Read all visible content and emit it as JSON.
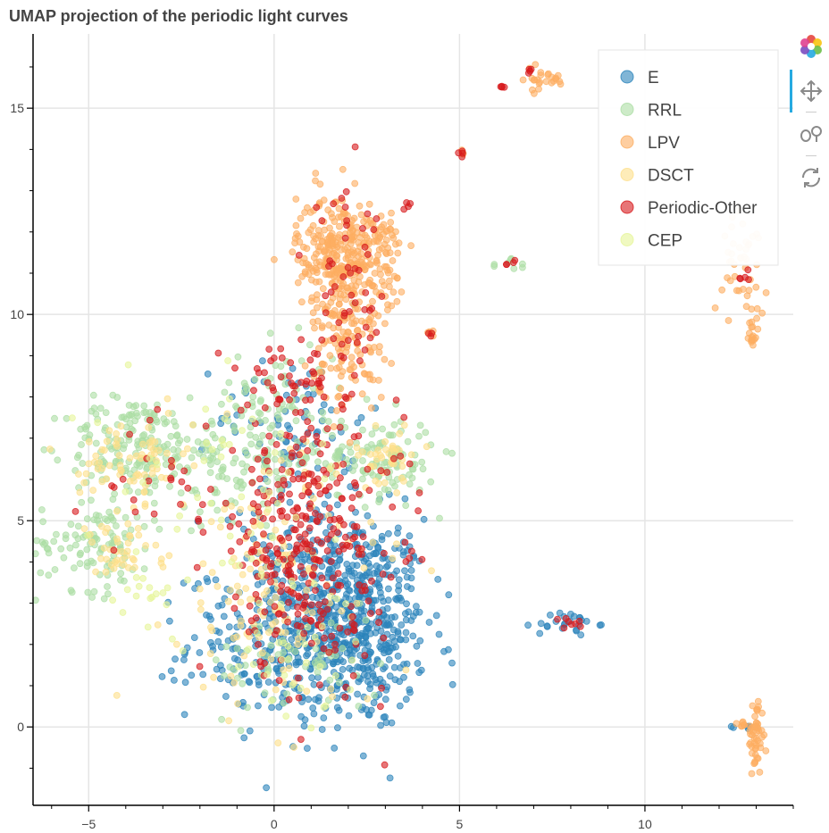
{
  "title": "UMAP projection of the periodic light curves",
  "toolbar": [
    {
      "name": "bokeh-logo-icon"
    },
    {
      "name": "pan-tool-icon"
    },
    {
      "name": "wheel-zoom-tool-icon"
    },
    {
      "name": "reset-tool-icon"
    }
  ],
  "chart_data": {
    "type": "scatter",
    "title": "UMAP projection of the periodic light curves",
    "xlabel": "",
    "ylabel": "",
    "xlim": [
      -6.5,
      14
    ],
    "ylim": [
      -1.9,
      16.8
    ],
    "xticks": [
      -5,
      0,
      5,
      10
    ],
    "yticks": [
      0,
      5,
      10,
      15
    ],
    "xtick_labels": [
      "−5",
      "0",
      "5",
      "10"
    ],
    "ytick_labels": [
      "0",
      "5",
      "10",
      "15"
    ],
    "grid": true,
    "legend_position": "top-right",
    "series": [
      {
        "name": "E",
        "color": "#2b83ba",
        "clusters": [
          {
            "cx": 2.3,
            "cy": 2.5,
            "sx": 0.9,
            "sy": 1.3,
            "n": 420
          },
          {
            "cx": 0.5,
            "cy": 2.0,
            "sx": 1.4,
            "sy": 0.9,
            "n": 300
          },
          {
            "cx": 1.0,
            "cy": 4.0,
            "sx": 1.2,
            "sy": 1.0,
            "n": 160
          },
          {
            "cx": 0.5,
            "cy": 7.5,
            "sx": 1.0,
            "sy": 0.8,
            "n": 70
          },
          {
            "cx": 7.9,
            "cy": 2.5,
            "sx": 0.4,
            "sy": 0.15,
            "n": 25
          },
          {
            "cx": 12.8,
            "cy": 0.0,
            "sx": 0.15,
            "sy": 0.05,
            "n": 6
          }
        ]
      },
      {
        "name": "RRL",
        "color": "#abdda4",
        "clusters": [
          {
            "cx": -3.8,
            "cy": 6.8,
            "sx": 0.9,
            "sy": 0.6,
            "n": 160
          },
          {
            "cx": -4.8,
            "cy": 4.5,
            "sx": 0.8,
            "sy": 0.6,
            "n": 110
          },
          {
            "cx": -1.0,
            "cy": 6.5,
            "sx": 1.2,
            "sy": 0.7,
            "n": 130
          },
          {
            "cx": 2.8,
            "cy": 6.5,
            "sx": 0.8,
            "sy": 0.5,
            "n": 120
          },
          {
            "cx": 0.2,
            "cy": 8.0,
            "sx": 0.8,
            "sy": 0.7,
            "n": 60
          },
          {
            "cx": 0.5,
            "cy": 1.5,
            "sx": 1.2,
            "sy": 0.6,
            "n": 60
          },
          {
            "cx": 6.4,
            "cy": 11.2,
            "sx": 0.25,
            "sy": 0.1,
            "n": 8
          }
        ]
      },
      {
        "name": "LPV",
        "color": "#fdae61",
        "clusters": [
          {
            "cx": 1.8,
            "cy": 11.5,
            "sx": 0.6,
            "sy": 0.7,
            "n": 300
          },
          {
            "cx": 2.0,
            "cy": 9.5,
            "sx": 0.5,
            "sy": 0.9,
            "n": 140
          },
          {
            "cx": 3.0,
            "cy": 11.2,
            "sx": 0.25,
            "sy": 0.8,
            "n": 40
          },
          {
            "cx": 7.2,
            "cy": 15.7,
            "sx": 0.35,
            "sy": 0.15,
            "n": 25
          },
          {
            "cx": 12.7,
            "cy": 11.2,
            "sx": 0.3,
            "sy": 0.6,
            "n": 45
          },
          {
            "cx": 12.9,
            "cy": 9.5,
            "sx": 0.05,
            "sy": 0.2,
            "n": 15
          },
          {
            "cx": 13.0,
            "cy": -0.2,
            "sx": 0.1,
            "sy": 0.45,
            "n": 50
          },
          {
            "cx": 12.6,
            "cy": 0.05,
            "sx": 0.15,
            "sy": 0.05,
            "n": 8
          },
          {
            "cx": 4.2,
            "cy": 9.55,
            "sx": 0.08,
            "sy": 0.04,
            "n": 6
          },
          {
            "cx": 5.05,
            "cy": 13.95,
            "sx": 0.05,
            "sy": 0.05,
            "n": 4
          }
        ]
      },
      {
        "name": "DSCT",
        "color": "#fee08b",
        "clusters": [
          {
            "cx": -3.8,
            "cy": 6.5,
            "sx": 0.7,
            "sy": 0.5,
            "n": 70
          },
          {
            "cx": -4.2,
            "cy": 4.2,
            "sx": 0.6,
            "sy": 0.4,
            "n": 40
          },
          {
            "cx": 0.0,
            "cy": 3.5,
            "sx": 1.4,
            "sy": 1.6,
            "n": 160
          },
          {
            "cx": 3.0,
            "cy": 6.5,
            "sx": 0.5,
            "sy": 0.4,
            "n": 40
          }
        ]
      },
      {
        "name": "Periodic-Other",
        "color": "#d7191c",
        "clusters": [
          {
            "cx": 0.8,
            "cy": 5.0,
            "sx": 1.3,
            "sy": 1.3,
            "n": 260
          },
          {
            "cx": 1.0,
            "cy": 2.5,
            "sx": 1.2,
            "sy": 1.0,
            "n": 80
          },
          {
            "cx": 0.3,
            "cy": 8.4,
            "sx": 0.6,
            "sy": 0.4,
            "n": 40
          },
          {
            "cx": 2.0,
            "cy": 10.2,
            "sx": 0.5,
            "sy": 1.3,
            "n": 60
          },
          {
            "cx": -3.5,
            "cy": 6.0,
            "sx": 0.8,
            "sy": 0.8,
            "n": 20
          },
          {
            "cx": 6.15,
            "cy": 15.5,
            "sx": 0.04,
            "sy": 0.04,
            "n": 4
          },
          {
            "cx": 6.9,
            "cy": 15.9,
            "sx": 0.06,
            "sy": 0.05,
            "n": 4
          },
          {
            "cx": 5.05,
            "cy": 13.95,
            "sx": 0.05,
            "sy": 0.05,
            "n": 4
          },
          {
            "cx": 8.0,
            "cy": 2.5,
            "sx": 0.2,
            "sy": 0.1,
            "n": 8
          },
          {
            "cx": 12.7,
            "cy": 10.9,
            "sx": 0.08,
            "sy": 0.1,
            "n": 5
          },
          {
            "cx": 3.6,
            "cy": 12.6,
            "sx": 0.08,
            "sy": 0.06,
            "n": 4
          },
          {
            "cx": 6.4,
            "cy": 11.2,
            "sx": 0.1,
            "sy": 0.06,
            "n": 4
          },
          {
            "cx": 4.2,
            "cy": 9.5,
            "sx": 0.05,
            "sy": 0.04,
            "n": 3
          }
        ]
      },
      {
        "name": "CEP",
        "color": "#e6f598",
        "clusters": [
          {
            "cx": -1.0,
            "cy": 6.0,
            "sx": 1.5,
            "sy": 1.2,
            "n": 50
          },
          {
            "cx": 0.5,
            "cy": 2.0,
            "sx": 1.3,
            "sy": 1.0,
            "n": 40
          },
          {
            "cx": -3.6,
            "cy": 3.2,
            "sx": 0.5,
            "sy": 0.3,
            "n": 15
          }
        ]
      }
    ]
  }
}
